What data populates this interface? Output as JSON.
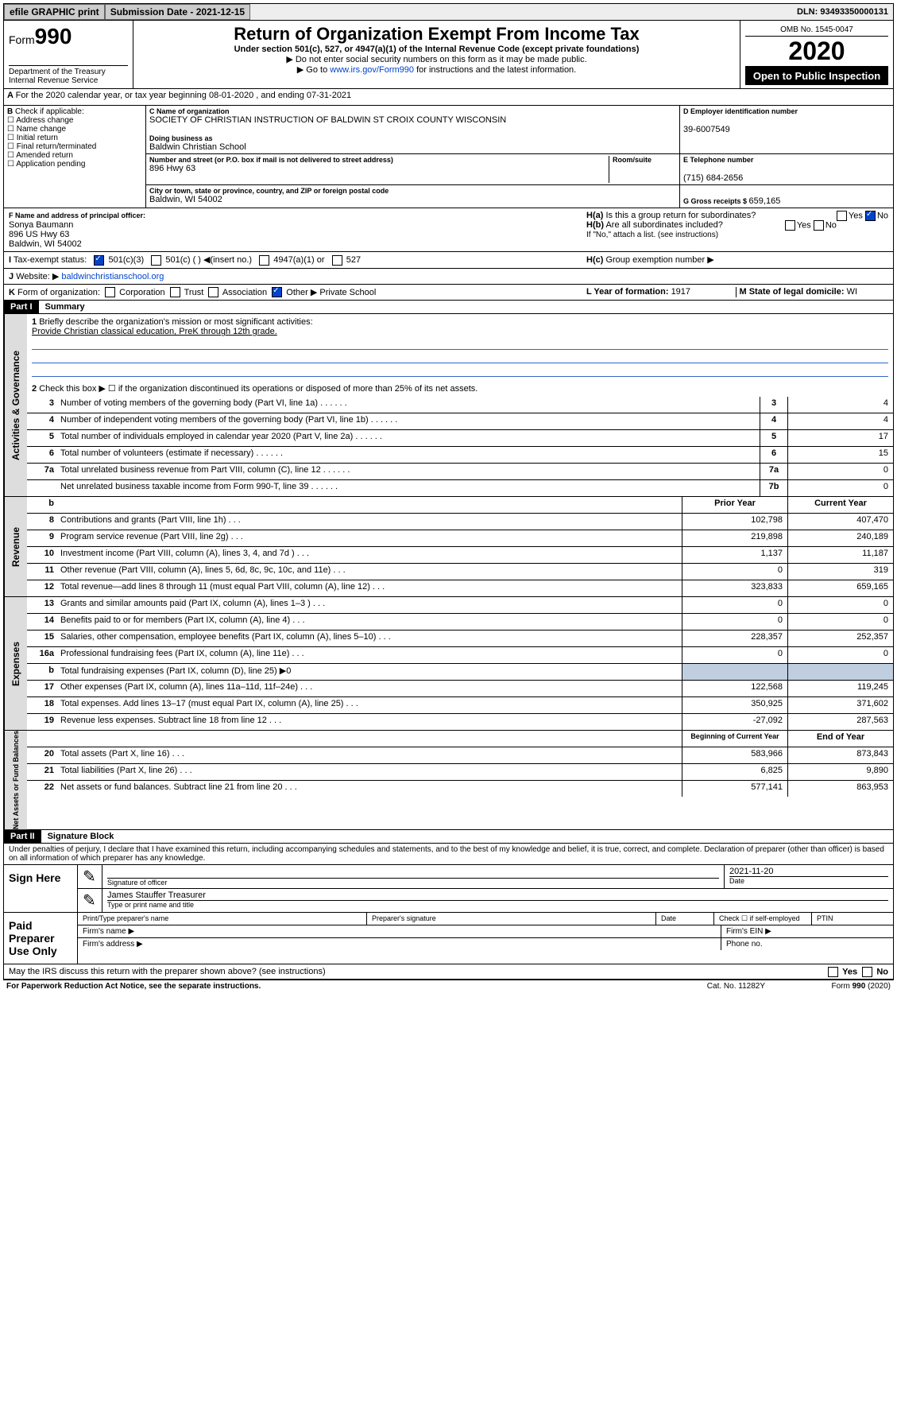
{
  "topbar": {
    "efile": "efile GRAPHIC print",
    "subdate_label": "Submission Date - ",
    "subdate": "2021-12-15",
    "dln_label": "DLN: ",
    "dln": "93493350000131"
  },
  "header": {
    "form_prefix": "Form",
    "form_no": "990",
    "dept": "Department of the Treasury\nInternal Revenue Service",
    "title": "Return of Organization Exempt From Income Tax",
    "under": "Under section 501(c), 527, or 4947(a)(1) of the Internal Revenue Code (except private foundations)",
    "sub1": "▶ Do not enter social security numbers on this form as it may be made public.",
    "sub2_pre": "▶ Go to ",
    "sub2_link": "www.irs.gov/Form990",
    "sub2_post": " for instructions and the latest information.",
    "omb": "OMB No. 1545-0047",
    "year": "2020",
    "open": "Open to Public Inspection"
  },
  "A": {
    "text": "For the 2020 calendar year, or tax year beginning 08-01-2020     , and ending 07-31-2021"
  },
  "B": {
    "label": "Check if applicable:",
    "items": [
      "Address change",
      "Name change",
      "Initial return",
      "Final return/terminated",
      "Amended return",
      "Application pending"
    ]
  },
  "C": {
    "name_label": "C Name of organization",
    "name": "SOCIETY OF CHRISTIAN INSTRUCTION OF BALDWIN ST CROIX COUNTY WISCONSIN",
    "dba_label": "Doing business as",
    "dba": "Baldwin Christian School",
    "addr_label": "Number and street (or P.O. box if mail is not delivered to street address)",
    "room_label": "Room/suite",
    "addr": "896 Hwy 63",
    "city_label": "City or town, state or province, country, and ZIP or foreign postal code",
    "city": "Baldwin, WI  54002"
  },
  "D": {
    "label": "D Employer identification number",
    "val": "39-6007549"
  },
  "E": {
    "label": "E Telephone number",
    "val": "(715) 684-2656"
  },
  "G": {
    "label": "G Gross receipts $ ",
    "val": "659,165"
  },
  "F": {
    "label": "F  Name and address of principal officer:",
    "name": "Sonya Baumann",
    "addr1": "896 US Hwy 63",
    "addr2": "Baldwin, WI  54002"
  },
  "H": {
    "a": "Is this a group return for subordinates?",
    "b": "Are all subordinates included?",
    "b_note": "If \"No,\" attach a list. (see instructions)",
    "c": "Group exemption number ▶",
    "yes": "Yes",
    "no": "No"
  },
  "I": {
    "label": "Tax-exempt status:",
    "opts": [
      "501(c)(3)",
      "501(c) (   ) ◀(insert no.)",
      "4947(a)(1) or",
      "527"
    ]
  },
  "J": {
    "label": "Website: ▶ ",
    "val": "baldwinchristianschool.org"
  },
  "K": {
    "label": "Form of organization:",
    "opts": [
      "Corporation",
      "Trust",
      "Association",
      "Other ▶"
    ],
    "other": "Private School"
  },
  "L": {
    "label": "L Year of formation: ",
    "val": "1917"
  },
  "M": {
    "label": "M State of legal domicile: ",
    "val": "WI"
  },
  "part1": {
    "bar": "Part I",
    "title": "Summary"
  },
  "summary": {
    "l1_label": "Briefly describe the organization's mission or most significant activities:",
    "l1_val": "Provide Christian classical education, PreK through 12th grade.",
    "l2": "Check this box ▶ ☐  if the organization discontinued its operations or disposed of more than 25% of its net assets.",
    "rows": [
      {
        "n": "3",
        "d": "Number of voting members of the governing body (Part VI, line 1a)",
        "b": "3",
        "v": "4"
      },
      {
        "n": "4",
        "d": "Number of independent voting members of the governing body (Part VI, line 1b)",
        "b": "4",
        "v": "4"
      },
      {
        "n": "5",
        "d": "Total number of individuals employed in calendar year 2020 (Part V, line 2a)",
        "b": "5",
        "v": "17"
      },
      {
        "n": "6",
        "d": "Total number of volunteers (estimate if necessary)",
        "b": "6",
        "v": "15"
      },
      {
        "n": "7a",
        "d": "Total unrelated business revenue from Part VIII, column (C), line 12",
        "b": "7a",
        "v": "0"
      },
      {
        "n": "",
        "d": "Net unrelated business taxable income from Form 990-T, line 39",
        "b": "7b",
        "v": "0"
      }
    ],
    "prior": "Prior Year",
    "current": "Current Year",
    "rev": [
      {
        "n": "8",
        "d": "Contributions and grants (Part VIII, line 1h)",
        "p": "102,798",
        "c": "407,470"
      },
      {
        "n": "9",
        "d": "Program service revenue (Part VIII, line 2g)",
        "p": "219,898",
        "c": "240,189"
      },
      {
        "n": "10",
        "d": "Investment income (Part VIII, column (A), lines 3, 4, and 7d )",
        "p": "1,137",
        "c": "11,187"
      },
      {
        "n": "11",
        "d": "Other revenue (Part VIII, column (A), lines 5, 6d, 8c, 9c, 10c, and 11e)",
        "p": "0",
        "c": "319"
      },
      {
        "n": "12",
        "d": "Total revenue—add lines 8 through 11 (must equal Part VIII, column (A), line 12)",
        "p": "323,833",
        "c": "659,165"
      }
    ],
    "exp": [
      {
        "n": "13",
        "d": "Grants and similar amounts paid (Part IX, column (A), lines 1–3 )",
        "p": "0",
        "c": "0"
      },
      {
        "n": "14",
        "d": "Benefits paid to or for members (Part IX, column (A), line 4)",
        "p": "0",
        "c": "0"
      },
      {
        "n": "15",
        "d": "Salaries, other compensation, employee benefits (Part IX, column (A), lines 5–10)",
        "p": "228,357",
        "c": "252,357"
      },
      {
        "n": "16a",
        "d": "Professional fundraising fees (Part IX, column (A), line 11e)",
        "p": "0",
        "c": "0"
      },
      {
        "n": "b",
        "d": "Total fundraising expenses (Part IX, column (D), line 25) ▶0",
        "p": "",
        "c": "",
        "shade": true
      },
      {
        "n": "17",
        "d": "Other expenses (Part IX, column (A), lines 11a–11d, 11f–24e)",
        "p": "122,568",
        "c": "119,245"
      },
      {
        "n": "18",
        "d": "Total expenses. Add lines 13–17 (must equal Part IX, column (A), line 25)",
        "p": "350,925",
        "c": "371,602"
      },
      {
        "n": "19",
        "d": "Revenue less expenses. Subtract line 18 from line 12",
        "p": "-27,092",
        "c": "287,563"
      }
    ],
    "begin": "Beginning of Current Year",
    "end": "End of Year",
    "net": [
      {
        "n": "20",
        "d": "Total assets (Part X, line 16)",
        "p": "583,966",
        "c": "873,843"
      },
      {
        "n": "21",
        "d": "Total liabilities (Part X, line 26)",
        "p": "6,825",
        "c": "9,890"
      },
      {
        "n": "22",
        "d": "Net assets or fund balances. Subtract line 21 from line 20",
        "p": "577,141",
        "c": "863,953"
      }
    ],
    "side_gov": "Activities & Governance",
    "side_rev": "Revenue",
    "side_exp": "Expenses",
    "side_net": "Net Assets or Fund Balances"
  },
  "part2": {
    "bar": "Part II",
    "title": "Signature Block"
  },
  "sig": {
    "perjury": "Under penalties of perjury, I declare that I have examined this return, including accompanying schedules and statements, and to the best of my knowledge and belief, it is true, correct, and complete. Declaration of preparer (other than officer) is based on all information of which preparer has any knowledge.",
    "here": "Sign Here",
    "sigoff": "Signature of officer",
    "date": "Date",
    "dateval": "2021-11-20",
    "typed": "James Stauffer Treasurer",
    "typed_label": "Type or print name and title",
    "paid": "Paid Preparer Use Only",
    "pname": "Print/Type preparer's name",
    "psig": "Preparer's signature",
    "pdate": "Date",
    "pcheck": "Check ☐ if self-employed",
    "ptin": "PTIN",
    "fname": "Firm's name  ▶",
    "fein": "Firm's EIN ▶",
    "faddr": "Firm's address ▶",
    "phone": "Phone no.",
    "discuss": "May the IRS discuss this return with the preparer shown above? (see instructions)"
  },
  "footer": {
    "pra": "For Paperwork Reduction Act Notice, see the separate instructions.",
    "cat": "Cat. No. 11282Y",
    "form": "Form 990 (2020)"
  }
}
